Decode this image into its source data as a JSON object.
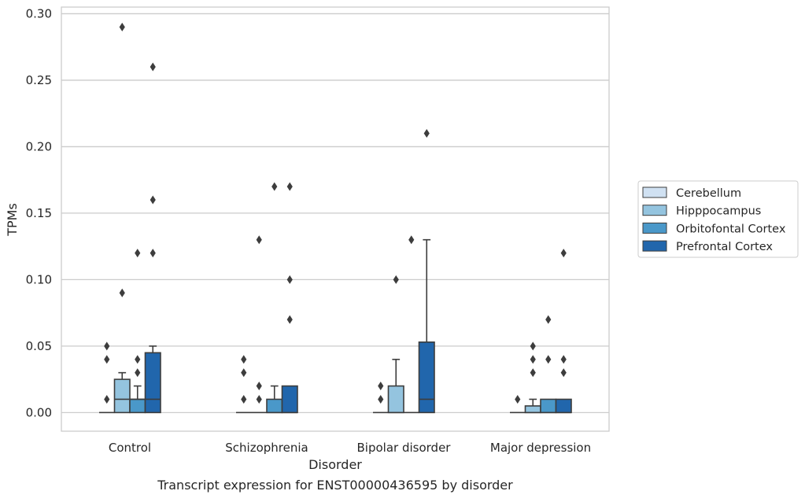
{
  "caption": "Transcript expression for ENST00000436595 by disorder",
  "chart_data": {
    "type": "boxplot",
    "title": "",
    "xlabel": "Disorder",
    "ylabel": "TPMs",
    "ylim": [
      -0.014,
      0.305
    ],
    "yticks": [
      0.0,
      0.05,
      0.1,
      0.15,
      0.2,
      0.25,
      0.3
    ],
    "ytick_labels": [
      "0.00",
      "0.05",
      "0.10",
      "0.15",
      "0.20",
      "0.25",
      "0.30"
    ],
    "grid": "horizontal",
    "legend_position": "right",
    "categories": [
      "Control",
      "Schizophrenia",
      "Bipolar disorder",
      "Major depression"
    ],
    "series": [
      {
        "name": "Cerebellum",
        "color": "#d0e1f2",
        "boxes": [
          {
            "min": 0,
            "q1": 0,
            "median": 0,
            "q3": 0,
            "max": 0,
            "outliers": [
              0.01,
              0.04,
              0.05
            ]
          },
          {
            "min": 0,
            "q1": 0,
            "median": 0,
            "q3": 0,
            "max": 0,
            "outliers": [
              0.01,
              0.03,
              0.04
            ]
          },
          {
            "min": 0,
            "q1": 0,
            "median": 0,
            "q3": 0,
            "max": 0,
            "outliers": [
              0.01,
              0.02
            ]
          },
          {
            "min": 0,
            "q1": 0,
            "median": 0,
            "q3": 0,
            "max": 0,
            "outliers": [
              0.01
            ]
          }
        ]
      },
      {
        "name": "Hipppocampus",
        "color": "#94c4df",
        "boxes": [
          {
            "min": 0,
            "q1": 0,
            "median": 0.01,
            "q3": 0.025,
            "max": 0.03,
            "outliers": [
              0.09,
              0.29
            ]
          },
          {
            "min": 0,
            "q1": 0,
            "median": 0,
            "q3": 0,
            "max": 0,
            "outliers": [
              0.01,
              0.02,
              0.13
            ]
          },
          {
            "min": 0,
            "q1": 0,
            "median": 0,
            "q3": 0.02,
            "max": 0.04,
            "outliers": [
              0.1
            ]
          },
          {
            "min": 0,
            "q1": 0,
            "median": 0,
            "q3": 0.005,
            "max": 0.01,
            "outliers": [
              0.03,
              0.04,
              0.05
            ]
          }
        ]
      },
      {
        "name": "Orbitofontal Cortex",
        "color": "#4a98c9",
        "boxes": [
          {
            "min": 0,
            "q1": 0,
            "median": 0.01,
            "q3": 0.01,
            "max": 0.02,
            "outliers": [
              0.03,
              0.04,
              0.12
            ]
          },
          {
            "min": 0,
            "q1": 0,
            "median": 0,
            "q3": 0.01,
            "max": 0.02,
            "outliers": [
              0.17
            ]
          },
          {
            "min": 0,
            "q1": 0,
            "median": 0,
            "q3": 0,
            "max": 0,
            "outliers": [
              0.13
            ]
          },
          {
            "min": 0,
            "q1": 0,
            "median": 0,
            "q3": 0.01,
            "max": 0.01,
            "outliers": [
              0.04,
              0.07
            ]
          }
        ]
      },
      {
        "name": "Prefrontal Cortex",
        "color": "#2166ac",
        "boxes": [
          {
            "min": 0,
            "q1": 0,
            "median": 0.01,
            "q3": 0.045,
            "max": 0.05,
            "outliers": [
              0.12,
              0.16,
              0.26
            ]
          },
          {
            "min": 0,
            "q1": 0,
            "median": 0,
            "q3": 0.02,
            "max": 0.02,
            "outliers": [
              0.07,
              0.1,
              0.17
            ]
          },
          {
            "min": 0,
            "q1": 0,
            "median": 0.01,
            "q3": 0.053,
            "max": 0.13,
            "outliers": [
              0.21
            ]
          },
          {
            "min": 0,
            "q1": 0,
            "median": 0,
            "q3": 0.01,
            "max": 0.01,
            "outliers": [
              0.03,
              0.04,
              0.12
            ]
          }
        ]
      }
    ]
  }
}
